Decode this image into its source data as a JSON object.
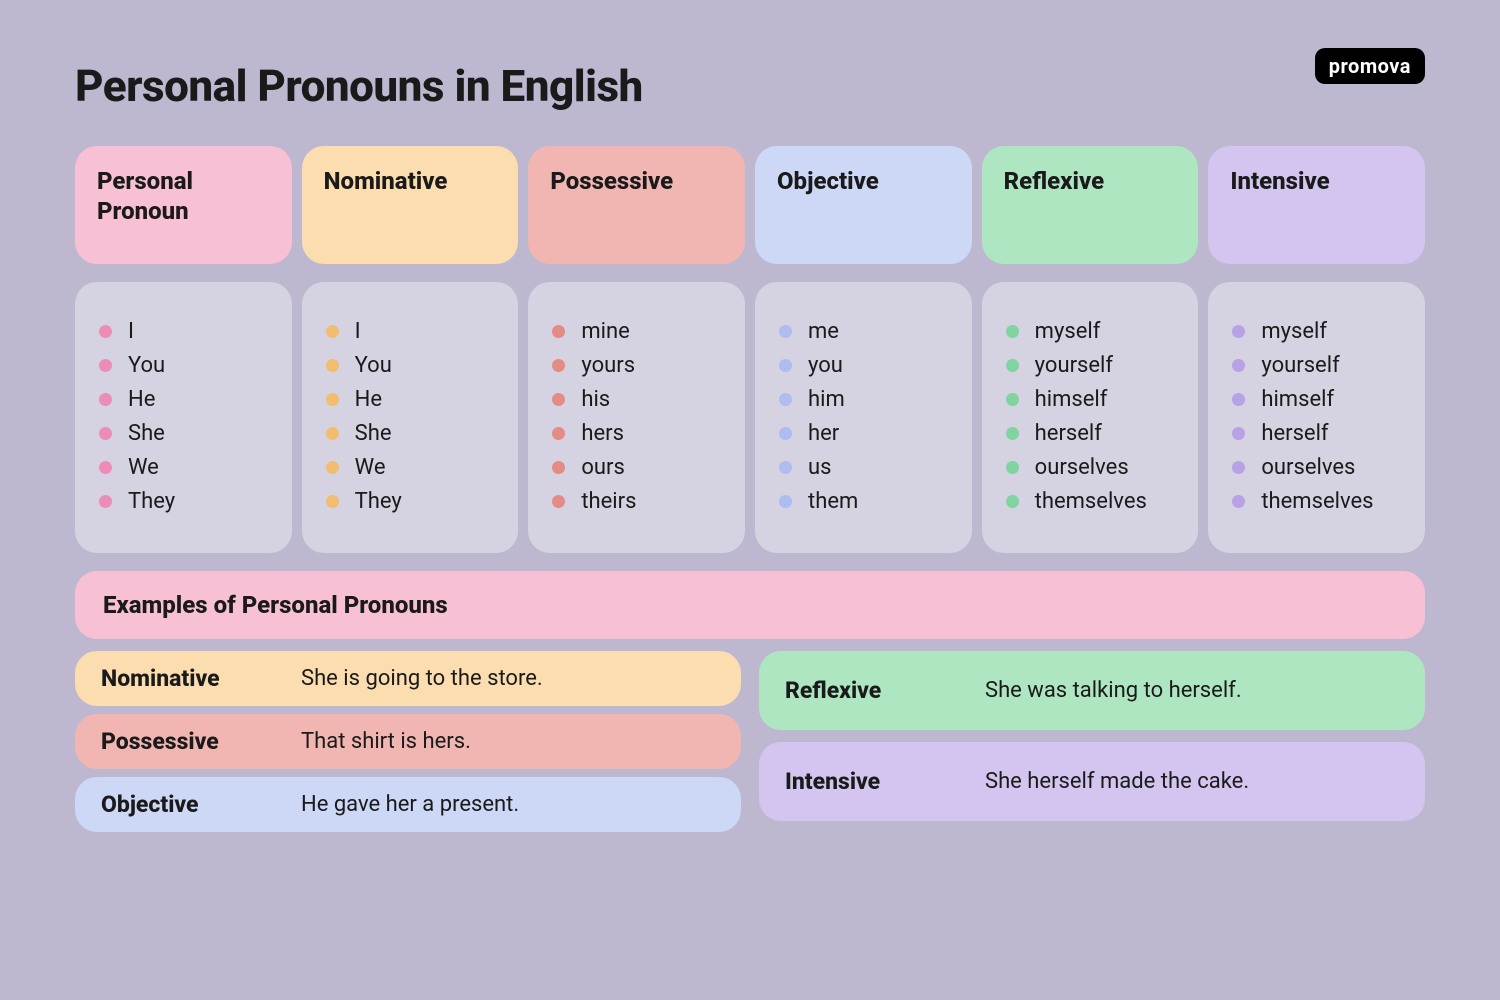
{
  "title": "Personal Pronouns in English",
  "logo": "promova",
  "colors": {
    "pink": "#f7c0d4",
    "orange": "#fbddb0",
    "coral": "#f1b6b2",
    "blue": "#cdd7f6",
    "green": "#afe6c2",
    "purple": "#d3c5ef",
    "body": "#d5d2e1",
    "bg": "#bdb8d0",
    "bullet_pink": "#ee8cb8",
    "bullet_orange": "#f3bd6f",
    "bullet_coral": "#e58b85",
    "bullet_blue": "#aebcf0",
    "bullet_green": "#7fd49f",
    "bullet_purple": "#b8a1e4"
  },
  "columns": [
    {
      "header": "Personal Pronoun",
      "headerColor": "pink",
      "bullet": "bullet_pink",
      "items": [
        "I",
        "You",
        "He",
        "She",
        "We",
        "They"
      ]
    },
    {
      "header": "Nominative",
      "headerColor": "orange",
      "bullet": "bullet_orange",
      "items": [
        "I",
        "You",
        "He",
        "She",
        "We",
        "They"
      ]
    },
    {
      "header": "Possessive",
      "headerColor": "coral",
      "bullet": "bullet_coral",
      "items": [
        "mine",
        "yours",
        "his",
        "hers",
        "ours",
        "theirs"
      ]
    },
    {
      "header": "Objective",
      "headerColor": "blue",
      "bullet": "bullet_blue",
      "items": [
        "me",
        "you",
        "him",
        "her",
        "us",
        "them"
      ]
    },
    {
      "header": "Reflexive",
      "headerColor": "green",
      "bullet": "bullet_green",
      "items": [
        "myself",
        "yourself",
        "himself",
        "herself",
        "ourselves",
        "themselves"
      ]
    },
    {
      "header": "Intensive",
      "headerColor": "purple",
      "bullet": "bullet_purple",
      "items": [
        "myself",
        "yourself",
        "himself",
        "herself",
        "ourselves",
        "themselves"
      ]
    }
  ],
  "examples": {
    "header": "Examples of Personal Pronouns",
    "headerColor": "pink",
    "left": [
      {
        "label": "Nominative",
        "text": "She is going to the store.",
        "color": "orange"
      },
      {
        "label": "Possessive",
        "text": "That shirt is hers.",
        "color": "coral"
      },
      {
        "label": "Objective",
        "text": "He gave her a present.",
        "color": "blue"
      }
    ],
    "right": [
      {
        "label": "Reflexive",
        "text": "She was talking to herself.",
        "color": "green"
      },
      {
        "label": "Intensive",
        "text": "She herself made the cake.",
        "color": "purple"
      }
    ]
  }
}
